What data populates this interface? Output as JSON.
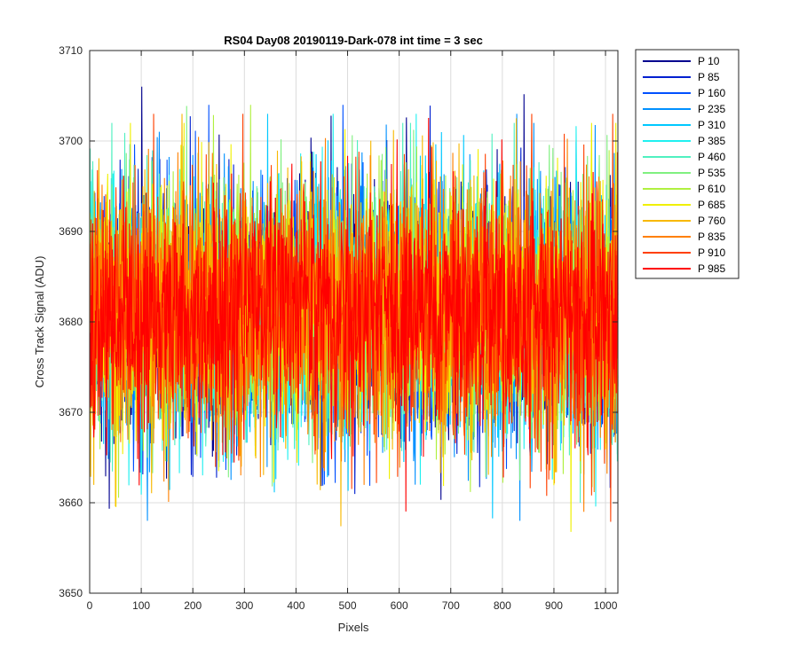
{
  "chart_data": {
    "type": "line",
    "title": "RS04 Day08 20190119-Dark-078 int time = 3 sec",
    "xlabel": "Pixels",
    "ylabel": "Cross Track Signal (ADU)",
    "xlim": [
      0,
      1024
    ],
    "ylim": [
      3650,
      3710
    ],
    "xticks": [
      0,
      100,
      200,
      300,
      400,
      500,
      600,
      700,
      800,
      900,
      1000
    ],
    "yticks": [
      3650,
      3660,
      3670,
      3680,
      3690,
      3700,
      3710
    ],
    "grid": true,
    "legend_position": "outside-top-right",
    "x_start": 1,
    "x_end": 1024,
    "series": [
      {
        "name": "P 10",
        "color": "#00008F",
        "mean": 3681,
        "spread": 7.0,
        "min": 3656,
        "max": 3706
      },
      {
        "name": "P 85",
        "color": "#0020D0",
        "mean": 3681,
        "spread": 7.0,
        "min": 3658,
        "max": 3705
      },
      {
        "name": "P 160",
        "color": "#0050FF",
        "mean": 3681,
        "spread": 7.0,
        "min": 3659,
        "max": 3704
      },
      {
        "name": "P 235",
        "color": "#0090FF",
        "mean": 3681,
        "spread": 7.0,
        "min": 3658,
        "max": 3703
      },
      {
        "name": "P 310",
        "color": "#00C8FF",
        "mean": 3681,
        "spread": 7.0,
        "min": 3652,
        "max": 3703
      },
      {
        "name": "P 385",
        "color": "#20F0F0",
        "mean": 3681,
        "spread": 7.0,
        "min": 3659,
        "max": 3703
      },
      {
        "name": "P 460",
        "color": "#50F0C0",
        "mean": 3681,
        "spread": 7.0,
        "min": 3660,
        "max": 3702
      },
      {
        "name": "P 535",
        "color": "#80F080",
        "mean": 3681,
        "spread": 7.0,
        "min": 3654,
        "max": 3705
      },
      {
        "name": "P 610",
        "color": "#B0F040",
        "mean": 3681,
        "spread": 7.0,
        "min": 3657,
        "max": 3704
      },
      {
        "name": "P 685",
        "color": "#F0F000",
        "mean": 3681,
        "spread": 7.0,
        "min": 3656,
        "max": 3702
      },
      {
        "name": "P 760",
        "color": "#F8B800",
        "mean": 3681,
        "spread": 7.0,
        "min": 3656,
        "max": 3703
      },
      {
        "name": "P 835",
        "color": "#FF8000",
        "mean": 3681,
        "spread": 7.0,
        "min": 3659,
        "max": 3703
      },
      {
        "name": "P 910",
        "color": "#FF4000",
        "mean": 3681,
        "spread": 7.0,
        "min": 3653,
        "max": 3703
      },
      {
        "name": "P 985",
        "color": "#FF0000",
        "mean": 3681,
        "spread": 6.5,
        "min": 3659,
        "max": 3705
      }
    ]
  }
}
